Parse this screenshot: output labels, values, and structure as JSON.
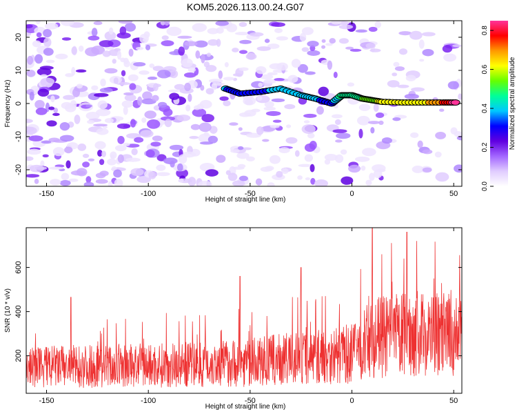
{
  "title": "KOM5.2026.113.00.24.G07",
  "chart_data": [
    {
      "type": "heatmap",
      "title": "KOM5.2026.113.00.24.G07",
      "xlabel": "Height of straight line (km)",
      "ylabel": "Frequency (Hz)",
      "xlim": [
        -160,
        54
      ],
      "ylim": [
        -25,
        25
      ],
      "xticks": [
        -150,
        -100,
        -50,
        0,
        50
      ],
      "yticks": [
        -20,
        -10,
        0,
        10,
        20
      ],
      "colorbar": {
        "label": "Normalized spectral amplitude",
        "range": [
          0,
          0.85
        ],
        "ticks": [
          0.0,
          0.2,
          0.4,
          0.6,
          0.8
        ],
        "colors": [
          "#ffffff",
          "#e0ccff",
          "#a366ff",
          "#6000e0",
          "#0000ff",
          "#00c8ff",
          "#00ff99",
          "#66ff00",
          "#ffff00",
          "#ff9900",
          "#ff0000",
          "#ff3399"
        ]
      },
      "ridge": {
        "description_points_x": [
          -62,
          -55,
          -45,
          -35,
          -25,
          -18,
          -10,
          -5,
          0,
          5,
          10,
          15,
          25,
          35,
          45,
          52
        ],
        "description_points_y": [
          4.5,
          3,
          3.5,
          4.5,
          2.5,
          1.5,
          0,
          2.5,
          2.5,
          1.5,
          1,
          0.5,
          0.3,
          0.3,
          0.3,
          0.3
        ],
        "amplitude": [
          0.35,
          0.3,
          0.3,
          0.4,
          0.38,
          0.36,
          0.3,
          0.45,
          0.5,
          0.5,
          0.55,
          0.6,
          0.6,
          0.62,
          0.75,
          0.85
        ]
      }
    },
    {
      "type": "line",
      "title": "",
      "xlabel": "Height of straight line (km)",
      "ylabel": "SNR (10 * v/v)",
      "xlim": [
        -160,
        54
      ],
      "ylim": [
        30,
        780
      ],
      "xticks": [
        -150,
        -100,
        -50,
        0,
        50
      ],
      "yticks": [
        200,
        400,
        600
      ],
      "series": [
        {
          "name": "SNR",
          "color": "#ee3030",
          "x_start": -160,
          "x_end": 54,
          "n_points": 1400,
          "baseline_trend_x": [
            -160,
            -100,
            -50,
            0,
            10,
            30,
            54
          ],
          "baseline_trend_y": [
            150,
            155,
            170,
            210,
            280,
            300,
            290
          ],
          "peaks_x": [
            10,
            27,
            -138,
            -55,
            -25
          ],
          "peaks_y": [
            780,
            760,
            465,
            560,
            600
          ]
        }
      ]
    }
  ]
}
